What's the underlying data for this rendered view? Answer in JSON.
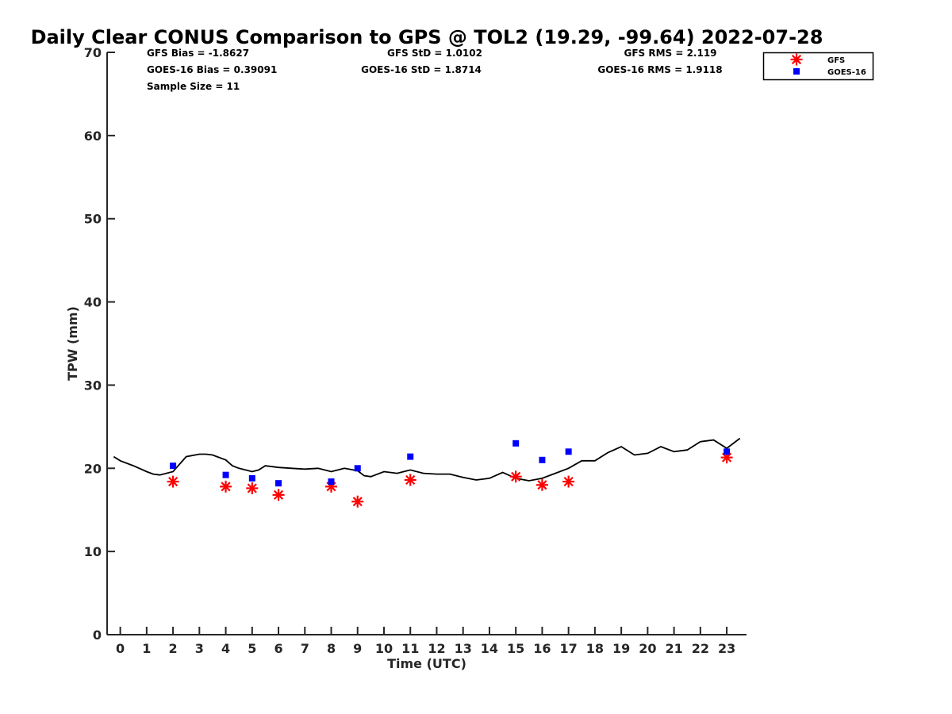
{
  "chart_data": {
    "type": "scatter",
    "title": "Daily Clear CONUS Comparison to GPS @ TOL2 (19.29, -99.64) 2022-07-28",
    "xlabel": "Time (UTC)",
    "ylabel": "TPW (mm)",
    "xlim": [
      -0.5,
      23.75
    ],
    "ylim": [
      0,
      70
    ],
    "x_ticks": [
      0,
      1,
      2,
      3,
      4,
      5,
      6,
      7,
      8,
      9,
      10,
      11,
      12,
      13,
      14,
      15,
      16,
      17,
      18,
      19,
      20,
      21,
      22,
      23
    ],
    "y_ticks": [
      0,
      10,
      20,
      30,
      40,
      50,
      60,
      70
    ],
    "grid": false,
    "legend_position": "top-right",
    "stats": {
      "gfs_bias": "GFS Bias = -1.8627",
      "gfs_std": "GFS StD = 1.0102",
      "gfs_rms": "GFS RMS = 2.119",
      "goes_bias": "GOES-16 Bias = 0.39091",
      "goes_std": "GOES-16 StD = 1.8714",
      "goes_rms": "GOES-16 RMS = 1.9118",
      "sample_size": "Sample Size = 11"
    },
    "series": [
      {
        "marker": "line",
        "color": "#000000",
        "x": [
          -0.25,
          0,
          0.5,
          1,
          1.25,
          1.5,
          2,
          2.5,
          3,
          3.25,
          3.5,
          4,
          4.25,
          4.5,
          5,
          5.25,
          5.5,
          6,
          6.5,
          7,
          7.5,
          8,
          8.25,
          8.5,
          9,
          9.25,
          9.5,
          10,
          10.5,
          11,
          11.5,
          12,
          12.5,
          13,
          13.5,
          14,
          14.5,
          15,
          15.5,
          16,
          16.5,
          17,
          17.5,
          18,
          18.5,
          19,
          19.5,
          20,
          20.5,
          21,
          21.5,
          22,
          22.5,
          23,
          23.5
        ],
        "values": [
          21.4,
          20.9,
          20.3,
          19.6,
          19.3,
          19.2,
          19.6,
          21.4,
          21.7,
          21.7,
          21.6,
          21.0,
          20.3,
          20.0,
          19.6,
          19.8,
          20.3,
          20.1,
          20.0,
          19.9,
          20.0,
          19.6,
          19.8,
          20.0,
          19.7,
          19.1,
          19.0,
          19.6,
          19.4,
          19.8,
          19.4,
          19.3,
          19.3,
          18.9,
          18.6,
          18.8,
          19.5,
          18.8,
          18.5,
          18.8,
          19.4,
          20.0,
          20.9,
          20.9,
          21.9,
          22.6,
          21.6,
          21.8,
          22.6,
          22.0,
          22.2,
          23.2,
          23.4,
          22.4,
          23.6
        ]
      },
      {
        "name": "GFS",
        "marker": "asterisk",
        "color": "#ff0000",
        "x": [
          2,
          4,
          5,
          6,
          8,
          9,
          11,
          15,
          16,
          17,
          23
        ],
        "values": [
          18.4,
          17.8,
          17.6,
          16.8,
          17.8,
          16.0,
          18.6,
          19.0,
          18.0,
          18.4,
          21.3
        ]
      },
      {
        "name": "GOES-16",
        "marker": "square",
        "color": "#0000ff",
        "x": [
          2,
          4,
          5,
          6,
          8,
          9,
          11,
          15,
          16,
          17,
          23
        ],
        "values": [
          20.3,
          19.2,
          18.8,
          18.2,
          18.4,
          20.0,
          21.4,
          23.0,
          21.0,
          22.0,
          22.0
        ]
      }
    ]
  }
}
